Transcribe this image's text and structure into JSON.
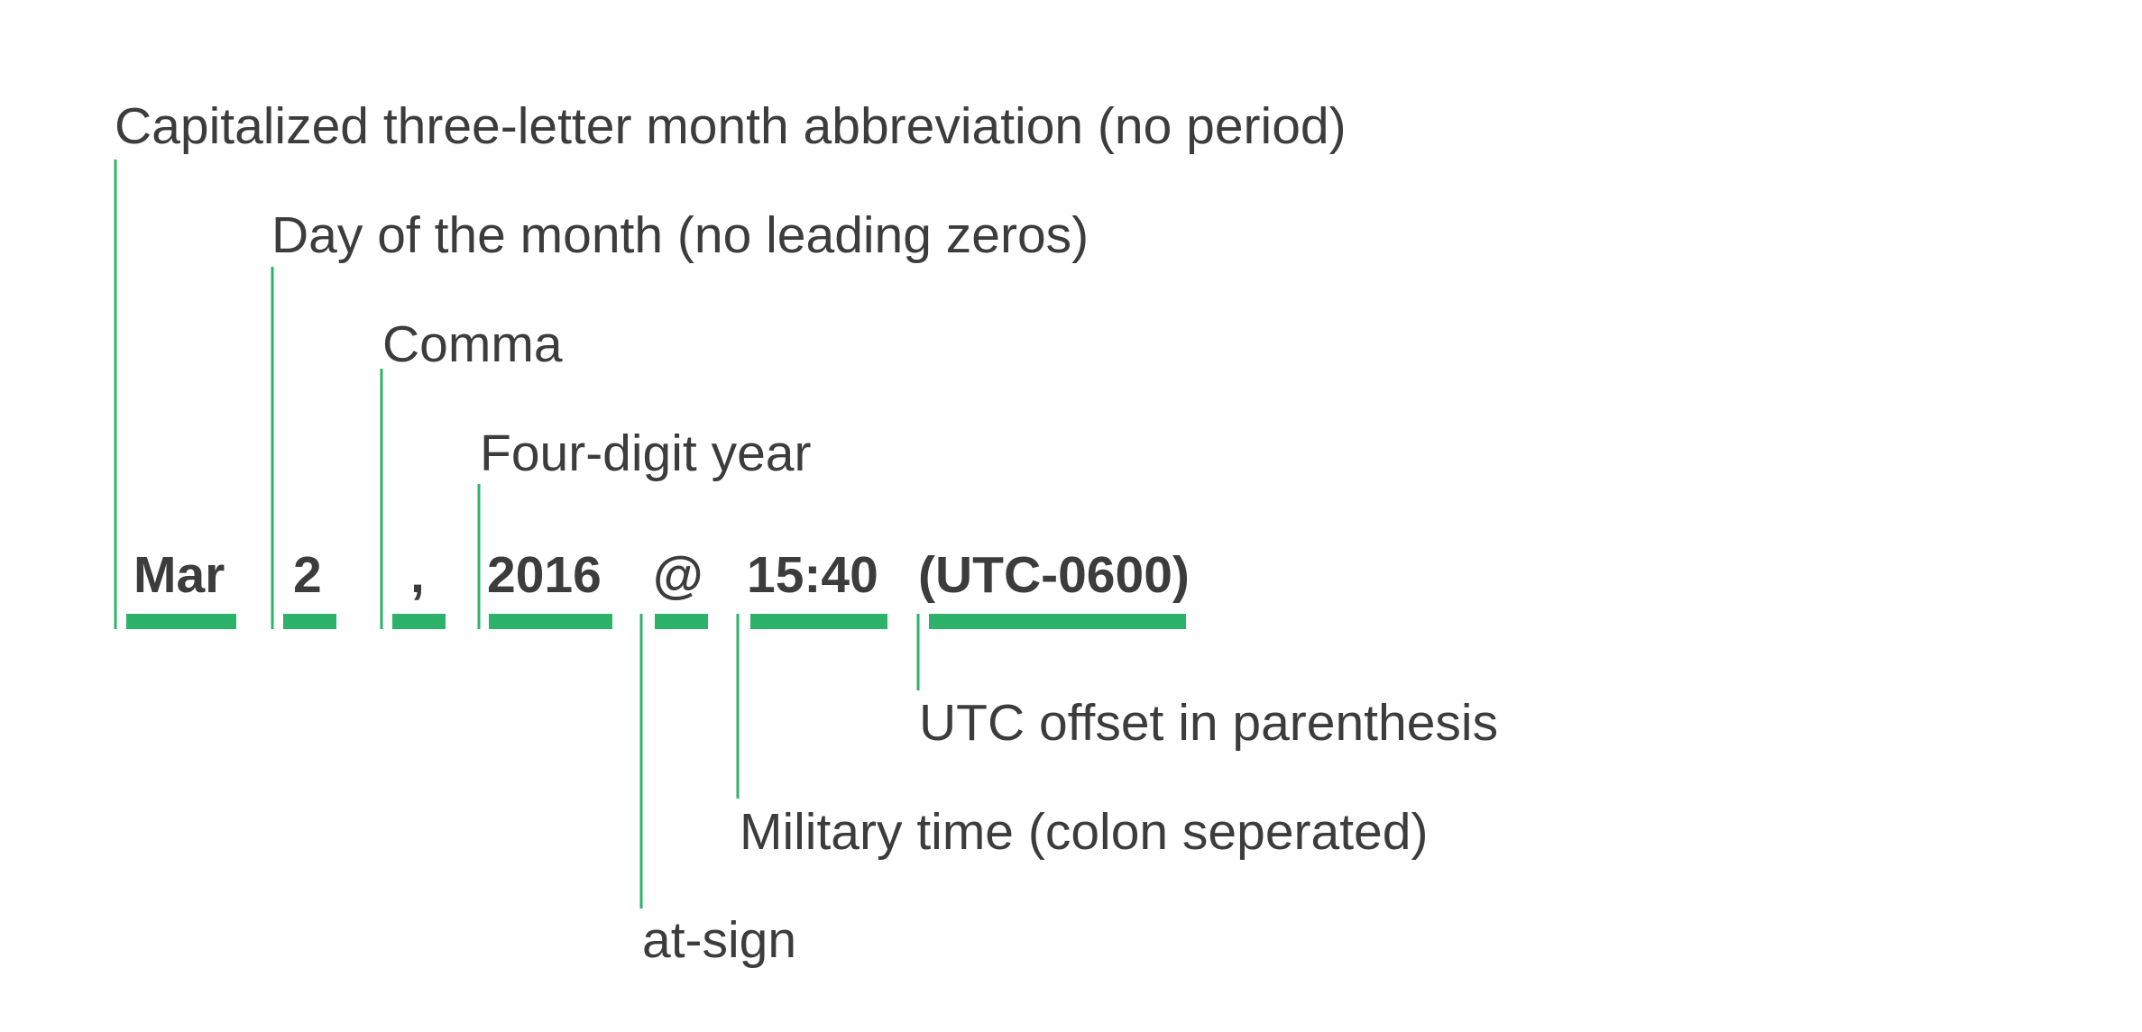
{
  "accent_color": "#2db369",
  "text_color": "#3c3c3c",
  "tokens": [
    {
      "id": "month",
      "text": "Mar"
    },
    {
      "id": "day",
      "text": "2"
    },
    {
      "id": "comma",
      "text": ","
    },
    {
      "id": "year",
      "text": "2016"
    },
    {
      "id": "at",
      "text": "@"
    },
    {
      "id": "time",
      "text": "15:40"
    },
    {
      "id": "offset",
      "text": "(UTC-0600)"
    }
  ],
  "annotations": [
    {
      "id": "month",
      "text": "Capitalized three-letter month abbreviation (no period)"
    },
    {
      "id": "day",
      "text": "Day of the month (no leading zeros)"
    },
    {
      "id": "comma",
      "text": "Comma"
    },
    {
      "id": "year",
      "text": "Four-digit year"
    },
    {
      "id": "offset",
      "text": "UTC offset in parenthesis"
    },
    {
      "id": "time",
      "text": "Military time (colon seperated)"
    },
    {
      "id": "at",
      "text": "at-sign"
    }
  ]
}
